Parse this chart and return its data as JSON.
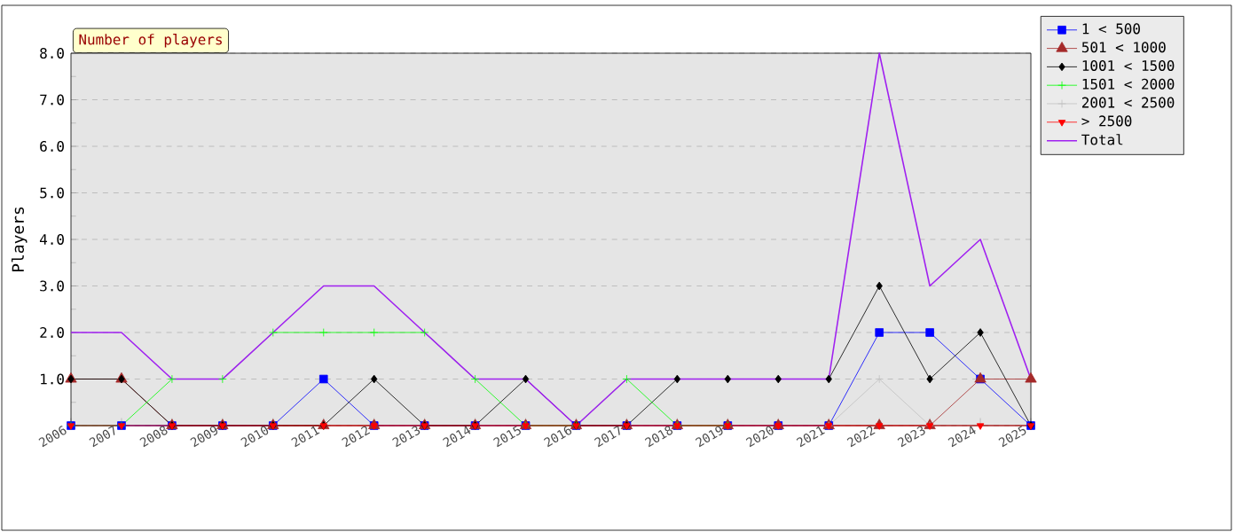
{
  "chart_data": {
    "type": "line",
    "title": "Number of players",
    "ylabel": "Players",
    "categories": [
      "2006",
      "2007",
      "2008",
      "2009",
      "2010",
      "2011",
      "2012",
      "2013",
      "2014",
      "2015",
      "2016",
      "2017",
      "2018",
      "2019",
      "2020",
      "2021",
      "2022",
      "2023",
      "2024",
      "2025"
    ],
    "series": [
      {
        "name": "1 < 500",
        "color": "#0000ff",
        "marker": "square",
        "values": [
          0,
          0,
          0,
          0,
          0,
          1,
          0,
          0,
          0,
          0,
          0,
          0,
          0,
          0,
          0,
          0,
          2,
          2,
          1,
          0
        ]
      },
      {
        "name": "501 < 1000",
        "color": "#a52a2a",
        "marker": "triangle",
        "values": [
          1,
          1,
          0,
          0,
          0,
          0,
          0,
          0,
          0,
          0,
          0,
          0,
          0,
          0,
          0,
          0,
          0,
          0,
          1,
          1
        ]
      },
      {
        "name": "1001 < 1500",
        "color": "#000000",
        "marker": "diamond",
        "values": [
          1,
          1,
          0,
          0,
          0,
          0,
          1,
          0,
          0,
          1,
          0,
          0,
          1,
          1,
          1,
          1,
          3,
          1,
          2,
          0
        ]
      },
      {
        "name": "1501 < 2000",
        "color": "#00ff00",
        "marker": "cross",
        "values": [
          0,
          0,
          1,
          1,
          2,
          2,
          2,
          2,
          1,
          0,
          0,
          1,
          0,
          0,
          null,
          null,
          null,
          null,
          null,
          null
        ]
      },
      {
        "name": "2001 < 2500",
        "color": "#c0c0c0",
        "marker": "cross",
        "values": [
          null,
          null,
          null,
          null,
          null,
          null,
          null,
          null,
          null,
          null,
          null,
          null,
          null,
          null,
          null,
          0,
          1,
          0,
          null,
          null
        ]
      },
      {
        "name": "> 2500",
        "color": "#ff0000",
        "marker": "triangle-down",
        "values": [
          0,
          0,
          0,
          0,
          0,
          0,
          0,
          0,
          0,
          0,
          0,
          0,
          0,
          0,
          0,
          0,
          0,
          0,
          0,
          0
        ]
      },
      {
        "name": "Total",
        "color": "#a020f0",
        "marker": "none",
        "values": [
          2,
          2,
          1,
          1,
          2,
          3,
          3,
          2,
          1,
          1,
          0,
          1,
          1,
          1,
          1,
          1,
          8,
          3,
          4,
          1
        ]
      }
    ],
    "ylim": [
      0,
      8
    ],
    "yticks": [
      {
        "value": 0,
        "label": null
      },
      {
        "value": 1,
        "label": "1.0"
      },
      {
        "value": 2,
        "label": "2.0"
      },
      {
        "value": 3,
        "label": "3.0"
      },
      {
        "value": 4,
        "label": "4.0"
      },
      {
        "value": 5,
        "label": "5.0"
      },
      {
        "value": 6,
        "label": "6.0"
      },
      {
        "value": 7,
        "label": "7.0"
      },
      {
        "value": 8,
        "label": "8.0"
      }
    ],
    "grid": "y",
    "legend": "top right"
  }
}
